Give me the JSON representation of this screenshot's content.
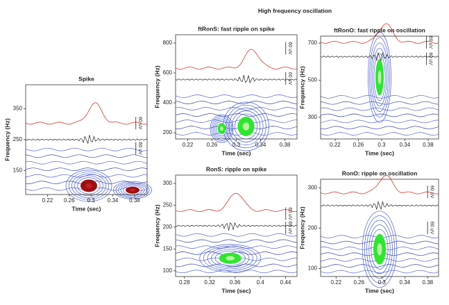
{
  "title": "High frequency oscillation",
  "chart_data": [
    {
      "type": "heatmap",
      "title": "Spike",
      "xlabel": "Time (sec)",
      "ylabel": "Frequency (Hz)",
      "xlim": [
        0.18,
        0.403
      ],
      "xticks": [
        0.22,
        0.26,
        0.3,
        0.34,
        0.38
      ],
      "ylim": [
        72,
        428
      ],
      "yticks": [
        150,
        250,
        350
      ],
      "scale_labels": [
        "60 uV",
        "60 uV"
      ]
    },
    {
      "type": "heatmap",
      "title": "ftRonS: fast ripple on spike",
      "xlabel": "Time (sec)",
      "ylabel": "Frequency (Hz)",
      "xlim": [
        0.2,
        0.4
      ],
      "xticks": [
        0.22,
        0.26,
        0.3,
        0.34,
        0.38
      ],
      "ylim": [
        158,
        856
      ],
      "yticks": [
        200,
        400,
        600,
        800
      ],
      "scale_labels": [
        "60 uV",
        "60 uV"
      ]
    },
    {
      "type": "heatmap",
      "title": "ftRonO: fast ripple on oscillation",
      "xlabel": "Time (sec)",
      "ylabel": "Frequency (Hz)",
      "xlim": [
        0.195,
        0.398
      ],
      "xticks": [
        0.22,
        0.26,
        0.3,
        0.34,
        0.38
      ],
      "ylim": [
        183,
        738
      ],
      "yticks": [
        300,
        500,
        700
      ],
      "scale_labels": [
        "60 uV",
        "60 uV"
      ]
    },
    {
      "type": "heatmap",
      "title": "RonS: ripple on spike",
      "xlabel": "Time (sec)",
      "ylabel": "Frequency (Hz)",
      "xlim": [
        0.266,
        0.458
      ],
      "xticks": [
        0.28,
        0.32,
        0.36,
        0.4,
        0.44
      ],
      "ylim": [
        87,
        319
      ],
      "yticks": [
        100,
        150,
        200,
        250,
        300
      ],
      "scale_labels": [
        "60 uV",
        "60 uV"
      ]
    },
    {
      "type": "heatmap",
      "title": "RonO: ripple on oscillation",
      "xlabel": "Time (sec)",
      "ylabel": "Frequency (Hz)",
      "xlim": [
        0.193,
        0.399
      ],
      "xticks": [
        0.22,
        0.26,
        0.3,
        0.34,
        0.38
      ],
      "ylim": [
        80,
        321
      ],
      "yticks": [
        100,
        200,
        300
      ],
      "scale_labels": [
        "60 uV",
        "60 uV"
      ]
    }
  ]
}
